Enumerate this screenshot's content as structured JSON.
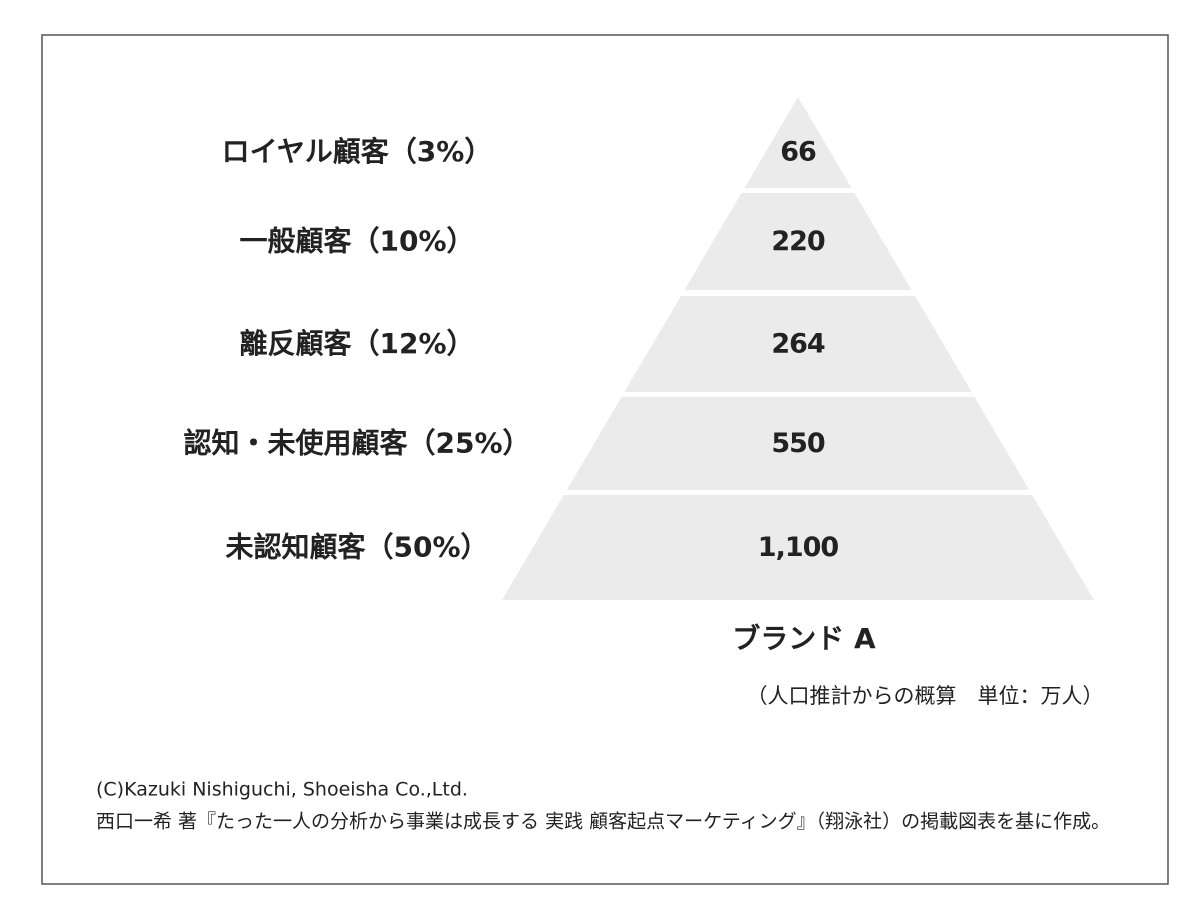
{
  "chart_data": {
    "type": "pyramid",
    "categories": [
      "ロイヤル顧客（3%）",
      "一般顧客（10%）",
      "離反顧客（12%）",
      "認知・未使用顧客（25%）",
      "未認知顧客（50%）"
    ],
    "values": [
      66,
      220,
      264,
      550,
      1100
    ],
    "value_labels": [
      "66",
      "220",
      "264",
      "550",
      "1,100"
    ],
    "color": "#ebebeb",
    "xlabel": "ブランド A",
    "note": "（人口推計からの概算　単位：万人）",
    "footer": [
      "(C)Kazuki Nishiguchi, Shoeisha Co.,Ltd.",
      "西口一希 著『たった一人の分析から事業は成長する 実践 顧客起点マーケティング』（翔泳社）の掲載図表を基に作成。"
    ]
  }
}
